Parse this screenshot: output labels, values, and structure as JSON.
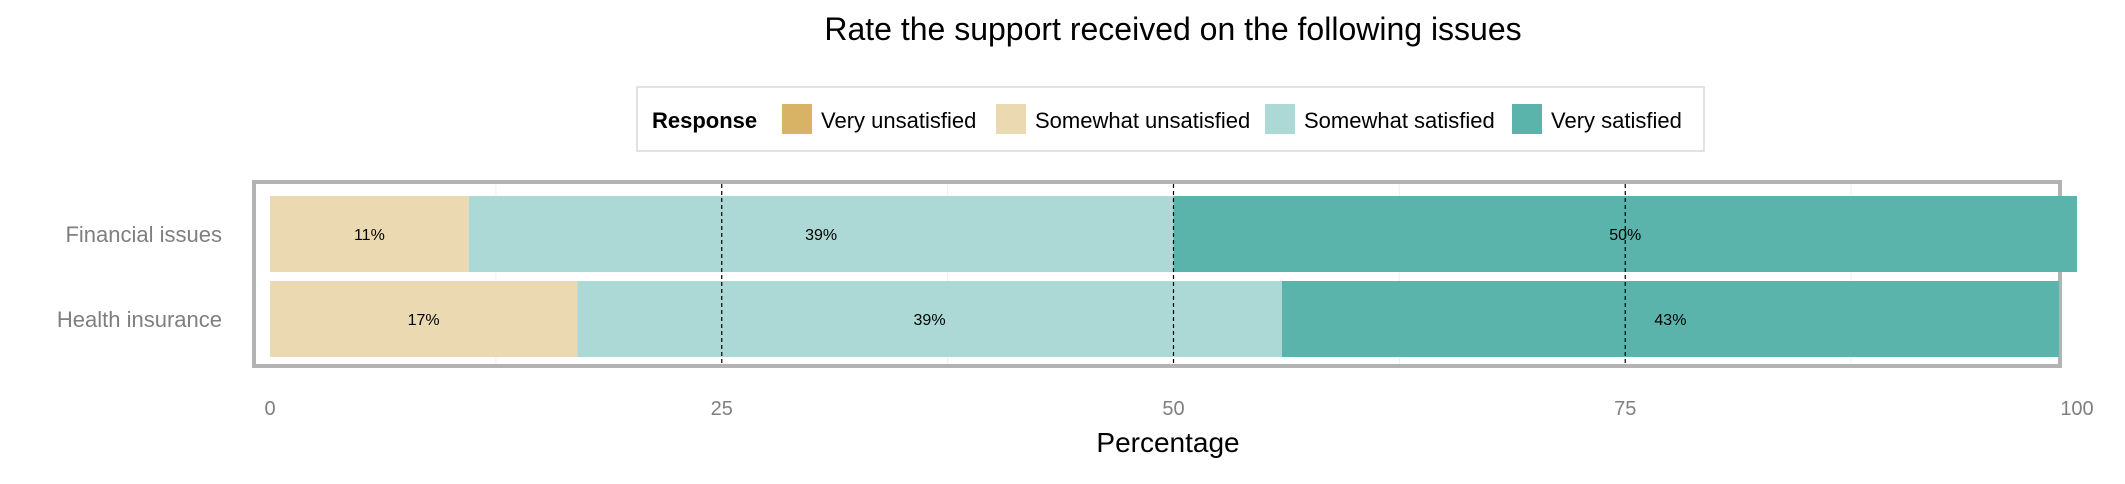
{
  "chart_data": {
    "type": "bar",
    "orientation": "horizontal",
    "stacked": true,
    "title": "Rate the support received on the following issues",
    "xlabel": "Percentage",
    "ylabel": "",
    "xlim": [
      0,
      100
    ],
    "xticks": [
      "0",
      "25",
      "50",
      "75",
      "100"
    ],
    "categories": [
      "Financial issues",
      "Health insurance"
    ],
    "legend": {
      "title": "Response",
      "position": "top"
    },
    "series": [
      {
        "name": "Very unsatisfied",
        "color": "#d8b365",
        "values": [
          0,
          0
        ],
        "labels": [
          "",
          ""
        ]
      },
      {
        "name": "Somewhat unsatisfied",
        "color": "#ebd9b2",
        "values": [
          11,
          17
        ],
        "labels": [
          "11%",
          "17%"
        ]
      },
      {
        "name": "Somewhat satisfied",
        "color": "#acd9d5",
        "values": [
          39,
          39
        ],
        "labels": [
          "39%",
          "39%"
        ]
      },
      {
        "name": "Very satisfied",
        "color": "#5ab4ac",
        "values": [
          50,
          43
        ],
        "labels": [
          "50%",
          "43%"
        ]
      }
    ],
    "reference_lines": [
      25,
      50,
      75
    ],
    "grid": true
  }
}
